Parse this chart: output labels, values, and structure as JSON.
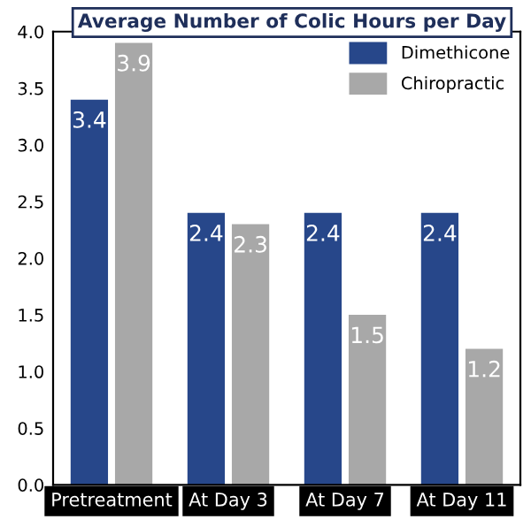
{
  "chart_data": {
    "type": "bar",
    "title": "Average Number of Colic Hours per Day",
    "categories": [
      "Pretreatment",
      "At Day 3",
      "At Day 7",
      "At Day 11"
    ],
    "series": [
      {
        "name": "Dimethicone",
        "color": "#27478a",
        "values": [
          3.4,
          2.4,
          2.4,
          2.4
        ]
      },
      {
        "name": "Chiropractic",
        "color": "#a8a8a8",
        "values": [
          3.9,
          2.3,
          1.5,
          1.2
        ]
      }
    ],
    "ylim": [
      0,
      4
    ],
    "yticks": [
      "0.0",
      "0.5",
      "1.0",
      "1.5",
      "2.0",
      "2.5",
      "3.0",
      "3.5",
      "4.0"
    ],
    "grid": false,
    "legend": "top right",
    "data_labels": true
  }
}
